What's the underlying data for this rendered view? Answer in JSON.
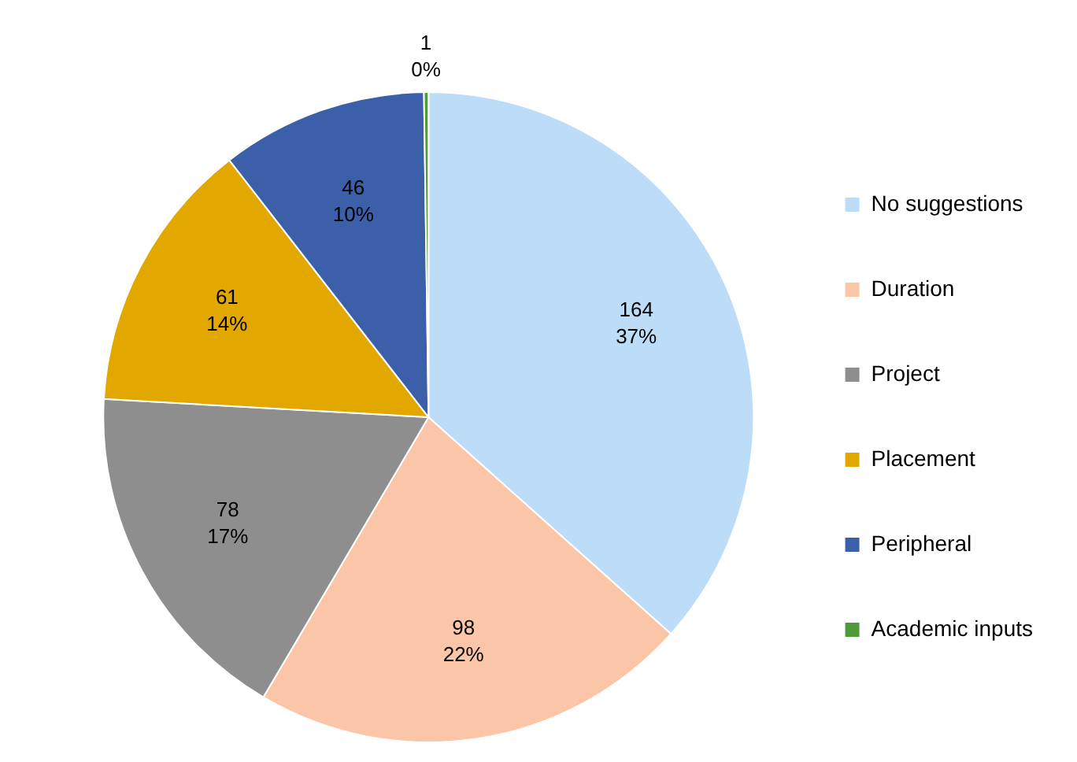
{
  "chart_data": {
    "type": "pie",
    "categories": [
      "No suggestions",
      "Duration",
      "Project",
      "Placement",
      "Peripheral",
      "Academic inputs"
    ],
    "values": [
      164,
      98,
      78,
      61,
      46,
      1
    ],
    "colors": [
      "#bddcf8",
      "#fbc6a8",
      "#8e8e8e",
      "#e2a800",
      "#3b5fa9",
      "#4f9a3a"
    ],
    "value_labels": [
      "164\n37%",
      "98\n22%",
      "78\n17%",
      "61\n14%",
      "46\n10%",
      "1\n0%"
    ],
    "legend": "right"
  }
}
